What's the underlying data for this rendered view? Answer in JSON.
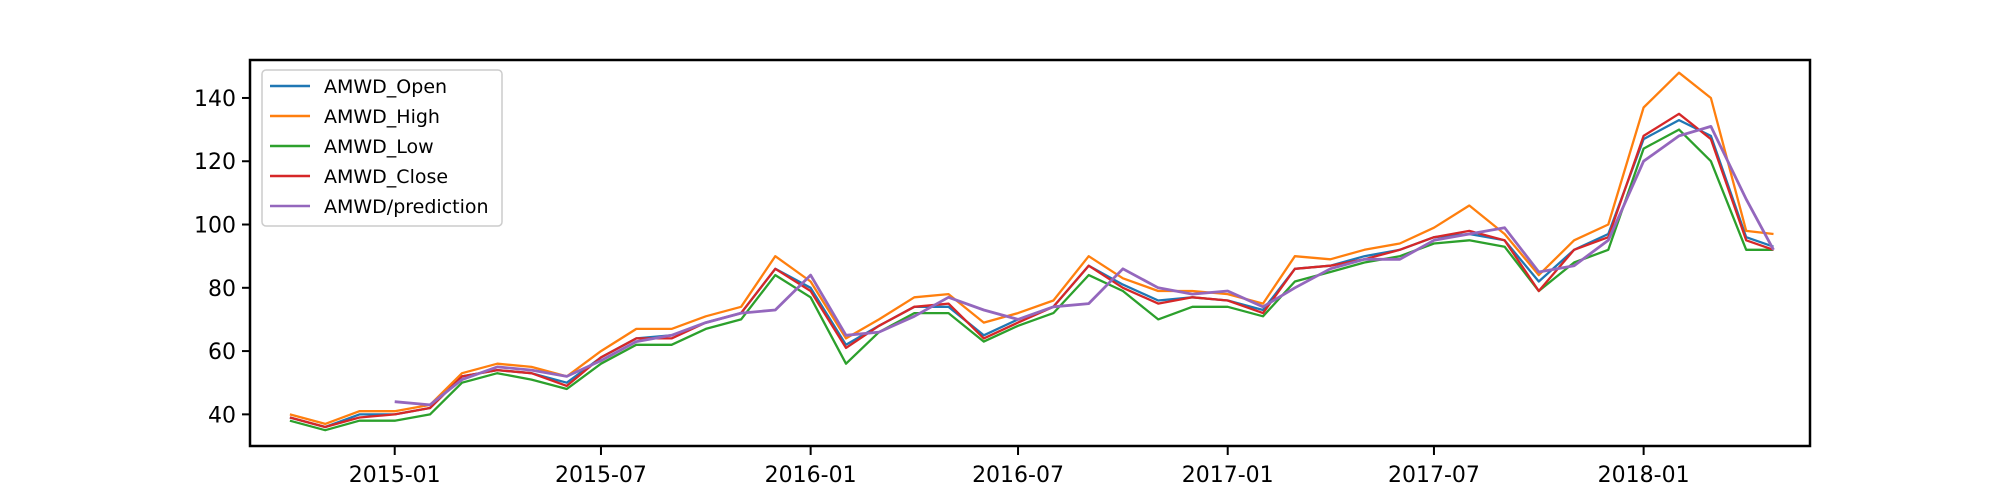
{
  "chart_data": {
    "type": "line",
    "title": "",
    "xlabel": "",
    "ylabel": "",
    "xlim": [
      "2014-08-27",
      "2018-05-27"
    ],
    "ylim": [
      30,
      152
    ],
    "grid": false,
    "legend_position": "top-left",
    "y_ticks": [
      40,
      60,
      80,
      100,
      120,
      140
    ],
    "x_ticks": [
      "2015-01",
      "2015-07",
      "2016-01",
      "2016-07",
      "2017-01",
      "2017-07",
      "2018-01"
    ],
    "x": [
      "2014-10-01",
      "2014-11-01",
      "2014-12-01",
      "2015-01-01",
      "2015-02-01",
      "2015-03-01",
      "2015-04-01",
      "2015-05-01",
      "2015-06-01",
      "2015-07-01",
      "2015-08-01",
      "2015-09-01",
      "2015-10-01",
      "2015-11-01",
      "2015-12-01",
      "2016-01-01",
      "2016-02-01",
      "2016-03-01",
      "2016-04-01",
      "2016-05-01",
      "2016-06-01",
      "2016-07-01",
      "2016-08-01",
      "2016-09-01",
      "2016-10-01",
      "2016-11-01",
      "2016-12-01",
      "2017-01-01",
      "2017-02-01",
      "2017-03-01",
      "2017-04-01",
      "2017-05-01",
      "2017-06-01",
      "2017-07-01",
      "2017-08-01",
      "2017-09-01",
      "2017-10-01",
      "2017-11-01",
      "2017-12-01",
      "2018-01-01",
      "2018-02-01",
      "2018-03-01",
      "2018-04-01",
      "2018-04-25"
    ],
    "series": [
      {
        "name": "AMWD_Open",
        "color": "#1f77b4",
        "values": [
          39,
          36,
          40,
          40,
          42,
          52,
          54,
          53,
          50,
          58,
          64,
          65,
          69,
          72,
          86,
          80,
          62,
          68,
          74,
          74,
          65,
          70,
          74,
          87,
          81,
          76,
          77,
          76,
          73,
          86,
          87,
          90,
          92,
          96,
          97,
          95,
          82,
          92,
          97,
          127,
          133,
          128,
          96,
          93
        ]
      },
      {
        "name": "AMWD_High",
        "color": "#ff7f0e",
        "values": [
          40,
          37,
          41,
          41,
          43,
          53,
          56,
          55,
          52,
          60,
          67,
          67,
          71,
          74,
          90,
          82,
          64,
          70,
          77,
          78,
          69,
          72,
          76,
          90,
          83,
          79,
          79,
          78,
          75,
          90,
          89,
          92,
          94,
          99,
          106,
          97,
          84,
          95,
          100,
          137,
          148,
          140,
          98,
          97
        ]
      },
      {
        "name": "AMWD_Low",
        "color": "#2ca02c",
        "values": [
          38,
          35,
          38,
          38,
          40,
          50,
          53,
          51,
          48,
          56,
          62,
          62,
          67,
          70,
          84,
          77,
          56,
          66,
          72,
          72,
          63,
          68,
          72,
          84,
          79,
          70,
          74,
          74,
          71,
          82,
          85,
          88,
          90,
          94,
          95,
          93,
          79,
          88,
          92,
          124,
          130,
          120,
          92,
          92
        ]
      },
      {
        "name": "AMWD_Close",
        "color": "#d62728",
        "values": [
          39,
          36,
          39,
          40,
          42,
          52,
          54,
          53,
          49,
          58,
          64,
          64,
          69,
          72,
          86,
          79,
          61,
          68,
          74,
          75,
          64,
          69,
          74,
          87,
          80,
          75,
          77,
          76,
          72,
          86,
          87,
          89,
          92,
          96,
          98,
          95,
          79,
          92,
          96,
          128,
          135,
          127,
          95,
          92
        ]
      },
      {
        "name": "AMWD/prediction",
        "color": "#9467bd",
        "values": [
          null,
          null,
          null,
          44,
          43,
          51,
          55,
          54,
          52,
          57,
          63,
          65,
          69,
          72,
          73,
          84,
          65,
          66,
          71,
          77,
          73,
          70,
          74,
          75,
          86,
          80,
          78,
          79,
          74,
          80,
          86,
          89,
          89,
          95,
          97,
          99,
          85,
          87,
          95,
          120,
          128,
          131,
          108,
          92
        ]
      }
    ]
  }
}
